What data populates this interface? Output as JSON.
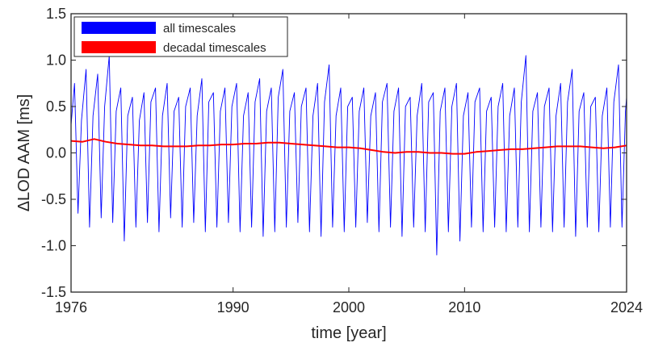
{
  "chart_data": {
    "type": "line",
    "title": "",
    "xlabel": "time [year]",
    "ylabel": "ΔLOD AAM [ms]",
    "xlim": [
      1976,
      2024
    ],
    "ylim": [
      -1.5,
      1.5
    ],
    "xticks": [
      1976,
      1990,
      2000,
      2010,
      2024
    ],
    "yticks": [
      -1.5,
      -1.0,
      -0.5,
      0.0,
      0.5,
      1.0,
      1.5
    ],
    "ytick_labels": [
      "-1.5",
      "-1.0",
      "-0.5",
      "0.0",
      "0.5",
      "1.0",
      "1.5"
    ],
    "legend_position": "top-left",
    "series": [
      {
        "name": "all timescales",
        "color": "#0000ff",
        "note": "approximately annual/semiannual oscillation; seasonal extremes read from figure",
        "x": [
          1976.0,
          1976.3,
          1976.6,
          1976.9,
          1977.3,
          1977.6,
          1977.9,
          1978.3,
          1978.6,
          1978.9,
          1979.3,
          1979.6,
          1979.9,
          1980.3,
          1980.6,
          1980.9,
          1981.3,
          1981.6,
          1981.9,
          1982.3,
          1982.6,
          1982.9,
          1983.3,
          1983.6,
          1983.9,
          1984.3,
          1984.6,
          1984.9,
          1985.3,
          1985.6,
          1985.9,
          1986.3,
          1986.6,
          1986.9,
          1987.3,
          1987.6,
          1987.9,
          1988.3,
          1988.6,
          1988.9,
          1989.3,
          1989.6,
          1989.9,
          1990.3,
          1990.6,
          1990.9,
          1991.3,
          1991.6,
          1991.9,
          1992.3,
          1992.6,
          1992.9,
          1993.3,
          1993.6,
          1993.9,
          1994.3,
          1994.6,
          1994.9,
          1995.3,
          1995.6,
          1995.9,
          1996.3,
          1996.6,
          1996.9,
          1997.3,
          1997.6,
          1997.9,
          1998.3,
          1998.6,
          1998.9,
          1999.3,
          1999.6,
          1999.9,
          2000.3,
          2000.6,
          2000.9,
          2001.3,
          2001.6,
          2001.9,
          2002.3,
          2002.6,
          2002.9,
          2003.3,
          2003.6,
          2003.9,
          2004.3,
          2004.6,
          2004.9,
          2005.3,
          2005.6,
          2005.9,
          2006.3,
          2006.6,
          2006.9,
          2007.3,
          2007.6,
          2007.9,
          2008.3,
          2008.6,
          2008.9,
          2009.3,
          2009.6,
          2009.9,
          2010.3,
          2010.6,
          2010.9,
          2011.3,
          2011.6,
          2011.9,
          2012.3,
          2012.6,
          2012.9,
          2013.3,
          2013.6,
          2013.9,
          2014.3,
          2014.6,
          2014.9,
          2015.3,
          2015.6,
          2015.9,
          2016.3,
          2016.6,
          2016.9,
          2017.3,
          2017.6,
          2017.9,
          2018.3,
          2018.6,
          2018.9,
          2019.3,
          2019.6,
          2019.9,
          2020.3,
          2020.6,
          2020.9,
          2021.3,
          2021.6,
          2021.9,
          2022.3,
          2022.6,
          2022.9,
          2023.3,
          2023.6,
          2023.9,
          2024.0
        ],
        "values": [
          0.3,
          0.75,
          -0.65,
          0.35,
          0.9,
          -0.8,
          0.4,
          0.85,
          -0.7,
          0.5,
          1.05,
          -0.75,
          0.45,
          0.7,
          -0.95,
          0.4,
          0.6,
          -0.8,
          0.35,
          0.65,
          -0.75,
          0.55,
          0.7,
          -0.85,
          0.4,
          0.75,
          -0.7,
          0.45,
          0.6,
          -0.8,
          0.5,
          0.7,
          -0.75,
          0.4,
          0.8,
          -0.85,
          0.55,
          0.65,
          -0.8,
          0.45,
          0.7,
          -0.75,
          0.5,
          0.75,
          -0.85,
          0.4,
          0.65,
          -0.8,
          0.55,
          0.8,
          -0.9,
          0.45,
          0.7,
          -0.85,
          0.6,
          0.9,
          -0.8,
          0.45,
          0.65,
          -0.75,
          0.5,
          0.7,
          -0.85,
          0.4,
          0.75,
          -0.9,
          0.55,
          0.95,
          -0.8,
          0.4,
          0.7,
          -0.85,
          0.5,
          0.6,
          -0.8,
          0.45,
          0.7,
          -0.75,
          0.4,
          0.65,
          -0.85,
          0.55,
          0.75,
          -0.8,
          0.45,
          0.7,
          -0.9,
          0.5,
          0.6,
          -0.8,
          0.4,
          0.75,
          -0.85,
          0.55,
          0.65,
          -1.1,
          0.45,
          0.7,
          -0.85,
          0.5,
          0.75,
          -0.95,
          0.4,
          0.65,
          -0.8,
          0.55,
          0.7,
          -0.85,
          0.45,
          0.6,
          -0.8,
          0.5,
          0.75,
          -0.85,
          0.4,
          0.7,
          -0.8,
          0.55,
          1.05,
          -0.85,
          0.45,
          0.65,
          -0.8,
          0.5,
          0.7,
          -0.85,
          0.4,
          0.75,
          -0.8,
          0.55,
          0.9,
          -0.9,
          0.45,
          0.65,
          -0.8,
          0.5,
          0.6,
          -0.85,
          0.4,
          0.7,
          -0.8,
          0.55,
          0.95,
          -0.8,
          0.45,
          0.6
        ]
      },
      {
        "name": "decadal timescales",
        "color": "#ff0000",
        "x": [
          1976,
          1977,
          1978,
          1979,
          1980,
          1981,
          1982,
          1983,
          1984,
          1985,
          1986,
          1987,
          1988,
          1989,
          1990,
          1991,
          1992,
          1993,
          1994,
          1995,
          1996,
          1997,
          1998,
          1999,
          2000,
          2001,
          2002,
          2003,
          2004,
          2005,
          2006,
          2007,
          2008,
          2009,
          2010,
          2011,
          2012,
          2013,
          2014,
          2015,
          2016,
          2017,
          2018,
          2019,
          2020,
          2021,
          2022,
          2023,
          2024
        ],
        "values": [
          0.13,
          0.12,
          0.15,
          0.12,
          0.1,
          0.09,
          0.08,
          0.08,
          0.07,
          0.07,
          0.07,
          0.08,
          0.08,
          0.09,
          0.09,
          0.1,
          0.1,
          0.11,
          0.11,
          0.1,
          0.09,
          0.08,
          0.07,
          0.06,
          0.06,
          0.05,
          0.03,
          0.01,
          0.0,
          0.01,
          0.01,
          0.0,
          0.0,
          -0.01,
          -0.01,
          0.01,
          0.02,
          0.03,
          0.04,
          0.04,
          0.05,
          0.06,
          0.07,
          0.07,
          0.07,
          0.06,
          0.05,
          0.06,
          0.08
        ]
      }
    ]
  }
}
